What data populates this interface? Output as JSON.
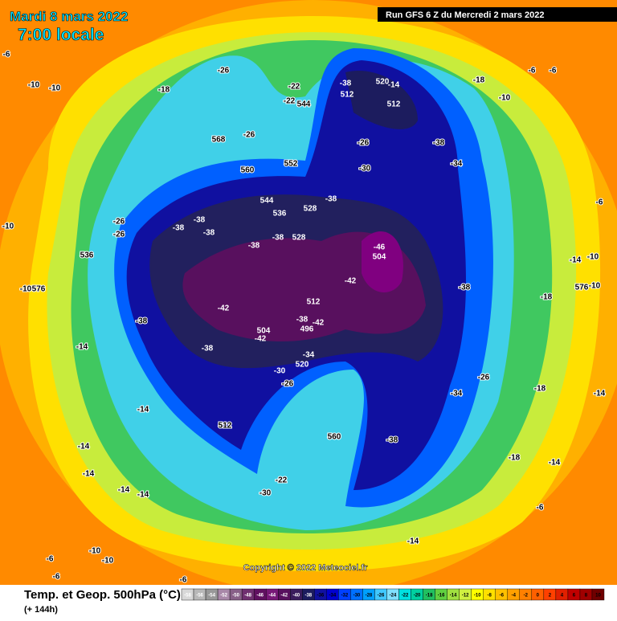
{
  "header": {
    "date": "Mardi 8 mars 2022",
    "time": "7:00 locale",
    "run": "Run GFS 6 Z du Mercredi 2 mars 2022"
  },
  "copyright": "Copyright © 2022 Meteociel.fr",
  "footer": {
    "title": "Temp. et Geop. 500hPa (°C)",
    "lead": "(+ 144h)"
  },
  "legend": {
    "values": [
      -58,
      -56,
      -54,
      -52,
      -50,
      -48,
      -46,
      -44,
      -42,
      -40,
      -38,
      -36,
      -34,
      -32,
      -30,
      -28,
      -26,
      -24,
      -22,
      -20,
      -18,
      -16,
      -14,
      -12,
      -10,
      -8,
      -6,
      -4,
      -2,
      0,
      2,
      4,
      6,
      8,
      10
    ],
    "colors": [
      "#d8d8d8",
      "#b8b8b8",
      "#989898",
      "#a888a8",
      "#886088",
      "#703070",
      "#601060",
      "#781878",
      "#58105e",
      "#3a1c5c",
      "#1c1c5e",
      "#1010a0",
      "#0000d0",
      "#0040ff",
      "#0070ff",
      "#00a0ff",
      "#40c8ff",
      "#80e0ff",
      "#00e0e0",
      "#00d0a0",
      "#20c060",
      "#60d040",
      "#a0e040",
      "#d0f040",
      "#ffff00",
      "#ffe000",
      "#ffc000",
      "#ffa000",
      "#ff8000",
      "#ff6000",
      "#ff4000",
      "#e02000",
      "#c00000",
      "#a00000",
      "#700000"
    ]
  },
  "map_labels": [
    -6,
    -10,
    -10,
    -18,
    -26,
    -22,
    -22,
    544,
    -38,
    520,
    -14,
    512,
    512,
    -18,
    -6,
    -6,
    -10,
    568,
    -26,
    -26,
    -38,
    -34,
    552,
    -30,
    560,
    -38,
    544,
    528,
    536,
    -26,
    -38,
    -38,
    -38,
    -38,
    -38,
    528,
    -26,
    -46,
    504,
    536,
    -14,
    -10,
    -38,
    -42,
    -18,
    -42,
    512,
    -38,
    504,
    -42,
    -38,
    -42,
    496,
    -38,
    -34,
    520,
    -30,
    -26,
    -26,
    -34,
    -18,
    -14,
    -14,
    512,
    560,
    -38,
    -14,
    -14,
    -18,
    -14,
    -30,
    -22,
    -14,
    -14,
    -6,
    -14,
    -10,
    -10,
    -6,
    -6,
    -6,
    -6,
    -10,
    -10,
    576,
    -14,
    -10,
    576,
    -6
  ]
}
